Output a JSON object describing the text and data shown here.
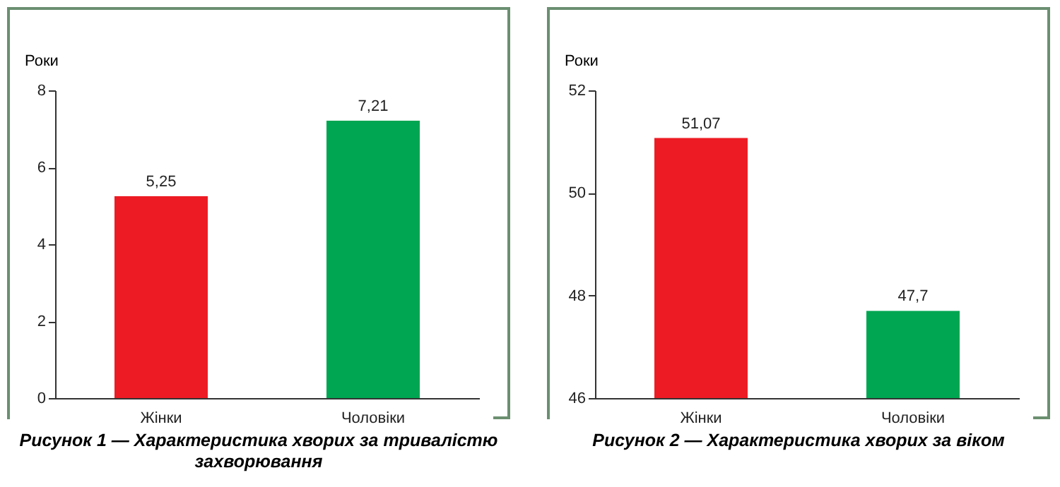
{
  "chart_data": [
    {
      "type": "bar",
      "title": "Рисунок 1 — Характеристика хворих за тривалістю захворювання",
      "ylabel": "Роки",
      "categories": [
        "Жінки",
        "Чоловіки"
      ],
      "values": [
        5.25,
        7.21
      ],
      "colors": [
        "#ed1c24",
        "#00a651"
      ],
      "value_labels": [
        "5,25",
        "7,21"
      ],
      "ylim": [
        0,
        8
      ],
      "yticks": [
        0,
        2,
        4,
        6,
        8
      ],
      "grid": false
    },
    {
      "type": "bar",
      "title": "Рисунок 2 — Характеристика хворих за віком",
      "ylabel": "Роки",
      "categories": [
        "Жінки",
        "Чоловіки"
      ],
      "values": [
        51.07,
        47.7
      ],
      "colors": [
        "#ed1c24",
        "#00a651"
      ],
      "value_labels": [
        "51,07",
        "47,7"
      ],
      "ylim": [
        46,
        52
      ],
      "yticks": [
        46,
        48,
        50,
        52
      ],
      "grid": false
    }
  ]
}
